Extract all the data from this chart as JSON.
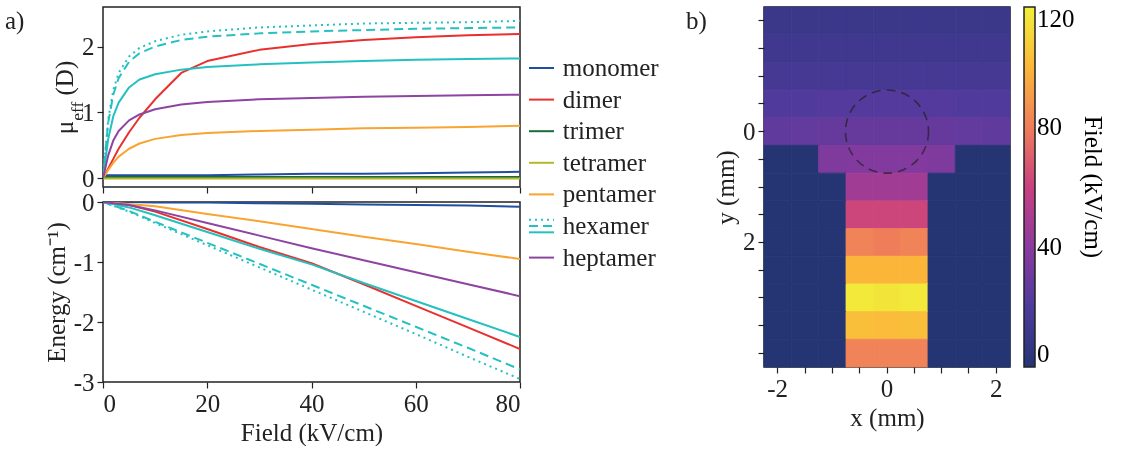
{
  "chart_data": [
    {
      "type": "line",
      "title": "a)",
      "ylabel": "μ$_{eff}$ (D)",
      "xlim": [
        0,
        80
      ],
      "ylim": [
        -0.13,
        2.6
      ],
      "yticks": [
        0,
        1,
        2
      ],
      "xticks": [
        0,
        20,
        40,
        60,
        80
      ],
      "tick_labels": "y",
      "legend": "right",
      "series": [
        {
          "name": "monomer",
          "color": "#1f4fa0",
          "line_style": "solid",
          "x": [
            0,
            1,
            2,
            3,
            5,
            7,
            10,
            15,
            20,
            30,
            40,
            50,
            60,
            70,
            80
          ],
          "values": [
            0.05,
            0.05,
            0.05,
            0.05,
            0.05,
            0.05,
            0.05,
            0.05,
            0.05,
            0.06,
            0.07,
            0.07,
            0.08,
            0.09,
            0.1
          ]
        },
        {
          "name": "dimer",
          "color": "#e8302e",
          "line_style": "solid",
          "x": [
            0,
            1,
            2,
            3,
            5,
            7,
            10,
            15,
            20,
            30,
            40,
            50,
            60,
            70,
            80
          ],
          "values": [
            0,
            0.15,
            0.3,
            0.45,
            0.7,
            0.92,
            1.2,
            1.6,
            1.78,
            1.95,
            2.04,
            2.1,
            2.14,
            2.17,
            2.19
          ]
        },
        {
          "name": "trimer",
          "color": "#1a6b3a",
          "line_style": "solid",
          "x": [
            0,
            80
          ],
          "values": [
            0.02,
            0.02
          ]
        },
        {
          "name": "tetramer",
          "color": "#b4b82a",
          "line_style": "solid",
          "x": [
            0,
            80
          ],
          "values": [
            0,
            0
          ]
        },
        {
          "name": "pentamer",
          "color": "#f9a431",
          "line_style": "solid",
          "x": [
            0,
            1,
            2,
            3,
            5,
            7,
            10,
            15,
            20,
            30,
            40,
            50,
            60,
            70,
            80
          ],
          "values": [
            0,
            0.13,
            0.24,
            0.33,
            0.45,
            0.53,
            0.6,
            0.66,
            0.69,
            0.72,
            0.74,
            0.76,
            0.77,
            0.78,
            0.8
          ]
        },
        {
          "name": "hexamer",
          "color": "#25c0c0",
          "line_style": "dotted",
          "x": [
            0,
            1,
            2,
            3,
            5,
            7,
            10,
            15,
            20,
            30,
            40,
            50,
            60,
            70,
            80
          ],
          "values": [
            0,
            0.9,
            1.35,
            1.6,
            1.85,
            1.98,
            2.08,
            2.18,
            2.23,
            2.29,
            2.32,
            2.35,
            2.36,
            2.37,
            2.39
          ]
        },
        {
          "color": "#25c0c0",
          "line_style": "dashed",
          "x": [
            0,
            1,
            2,
            3,
            5,
            7,
            10,
            15,
            20,
            30,
            40,
            50,
            60,
            70,
            80
          ],
          "values": [
            0,
            0.85,
            1.28,
            1.52,
            1.77,
            1.9,
            2.0,
            2.1,
            2.15,
            2.2,
            2.23,
            2.25,
            2.27,
            2.28,
            2.29
          ]
        },
        {
          "color": "#25c0c0",
          "line_style": "solid",
          "x": [
            0,
            1,
            2,
            3,
            5,
            7,
            10,
            15,
            20,
            30,
            40,
            50,
            60,
            70,
            80
          ],
          "values": [
            0,
            0.6,
            0.95,
            1.15,
            1.38,
            1.5,
            1.58,
            1.65,
            1.69,
            1.73,
            1.76,
            1.78,
            1.8,
            1.81,
            1.82
          ]
        },
        {
          "name": "heptamer",
          "color": "#8e44a0",
          "line_style": "solid",
          "x": [
            0,
            1,
            2,
            3,
            5,
            7,
            10,
            15,
            20,
            30,
            40,
            50,
            60,
            70,
            80
          ],
          "values": [
            0,
            0.35,
            0.58,
            0.72,
            0.88,
            0.97,
            1.05,
            1.12,
            1.16,
            1.2,
            1.22,
            1.24,
            1.25,
            1.26,
            1.27
          ]
        }
      ]
    },
    {
      "type": "line",
      "xlabel": "Field (kV/cm)",
      "ylabel": "Energy (cm⁻¹)",
      "xlim": [
        0,
        80
      ],
      "ylim": [
        -3,
        0
      ],
      "yticks": [
        -3,
        -2,
        -1,
        0
      ],
      "xticks": [
        0,
        20,
        40,
        60,
        80
      ],
      "series": [
        {
          "color": "#1f4fa0",
          "line_style": "solid",
          "x": [
            0,
            5,
            10,
            20,
            30,
            40,
            50,
            60,
            70,
            80
          ],
          "values": [
            0,
            0,
            -0.01,
            -0.01,
            -0.02,
            -0.03,
            -0.04,
            -0.05,
            -0.06,
            -0.08
          ]
        },
        {
          "color": "#e8302e",
          "line_style": "solid",
          "x": [
            0,
            5,
            10,
            20,
            30,
            40,
            50,
            60,
            70,
            80
          ],
          "values": [
            0,
            -0.05,
            -0.16,
            -0.45,
            -0.75,
            -1.02,
            -1.37,
            -1.73,
            -2.09,
            -2.45
          ]
        },
        {
          "color": "#f9a431",
          "line_style": "solid",
          "x": [
            0,
            10,
            20,
            30,
            40,
            50,
            60,
            70,
            80
          ],
          "values": [
            0,
            -0.07,
            -0.2,
            -0.32,
            -0.45,
            -0.58,
            -0.7,
            -0.83,
            -0.95
          ]
        },
        {
          "color": "#25c0c0",
          "line_style": "dotted",
          "x": [
            0,
            5,
            10,
            20,
            30,
            40,
            50,
            60,
            70,
            80
          ],
          "values": [
            0,
            -0.16,
            -0.35,
            -0.72,
            -1.09,
            -1.46,
            -1.83,
            -2.2,
            -2.58,
            -2.95
          ]
        },
        {
          "color": "#25c0c0",
          "line_style": "dashed",
          "x": [
            0,
            5,
            10,
            20,
            30,
            40,
            50,
            60,
            70,
            80
          ],
          "values": [
            0,
            -0.15,
            -0.33,
            -0.68,
            -1.03,
            -1.38,
            -1.73,
            -2.08,
            -2.43,
            -2.79
          ]
        },
        {
          "color": "#25c0c0",
          "line_style": "solid",
          "x": [
            0,
            5,
            10,
            20,
            30,
            40,
            50,
            60,
            70,
            80
          ],
          "values": [
            0,
            -0.09,
            -0.22,
            -0.5,
            -0.78,
            -1.04,
            -1.35,
            -1.65,
            -1.95,
            -2.25
          ]
        },
        {
          "color": "#8e44a0",
          "line_style": "solid",
          "x": [
            0,
            5,
            10,
            20,
            30,
            40,
            50,
            60,
            70,
            80
          ],
          "values": [
            0,
            -0.05,
            -0.14,
            -0.35,
            -0.56,
            -0.77,
            -0.97,
            -1.17,
            -1.37,
            -1.57
          ]
        }
      ]
    },
    {
      "type": "heatmap",
      "title": "b)",
      "xlabel": "x (mm)",
      "ylabel": "y (mm)",
      "clabel": "Field (kV/cm)",
      "clim": [
        0,
        120
      ],
      "cticks": [
        0,
        40,
        80,
        120
      ],
      "categories": [
        "-2",
        null,
        null,
        null,
        "0",
        null,
        null,
        null,
        "2"
      ],
      "y_categories": [
        null,
        null,
        null,
        null,
        "0",
        null,
        null,
        null,
        "2",
        null,
        null,
        null,
        null
      ],
      "cells": [
        [
          11,
          11,
          11,
          11,
          11,
          11,
          11,
          11,
          11
        ],
        [
          13,
          13,
          13,
          13,
          13,
          13,
          13,
          13,
          13
        ],
        [
          16,
          16,
          16,
          16,
          16,
          16,
          16,
          16,
          16
        ],
        [
          21,
          21,
          22,
          22,
          22,
          22,
          22,
          21,
          21
        ],
        [
          26,
          27,
          28,
          28,
          28,
          28,
          28,
          27,
          26
        ],
        [
          0,
          0,
          36,
          37,
          37,
          37,
          36,
          0,
          0
        ],
        [
          0,
          0,
          0,
          47,
          47,
          47,
          0,
          0,
          0
        ],
        [
          0,
          0,
          0,
          62,
          62,
          62,
          0,
          0,
          0
        ],
        [
          0,
          0,
          0,
          82,
          80,
          82,
          0,
          0,
          0
        ],
        [
          0,
          0,
          0,
          100,
          100,
          100,
          0,
          0,
          0
        ],
        [
          0,
          0,
          0,
          118,
          116,
          118,
          0,
          0,
          0
        ],
        [
          0,
          0,
          0,
          103,
          102,
          103,
          0,
          0,
          0
        ],
        [
          0,
          0,
          0,
          82,
          82,
          82,
          0,
          0,
          0
        ]
      ]
    }
  ]
}
